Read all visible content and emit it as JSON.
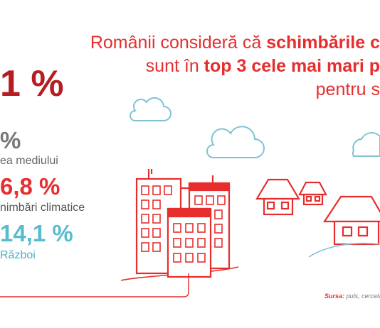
{
  "headline": {
    "line1_prefix": "Românii consideră că ",
    "line1_bold": "schimbările c",
    "line2_prefix": "sunt în ",
    "line2_bold": "top 3 cele mai mari p",
    "line3": "pentru s"
  },
  "big_stat": {
    "value": "1 %"
  },
  "stats": [
    {
      "value": "%",
      "label": "ea mediului"
    },
    {
      "value": "6,8 %",
      "label": "nimbări climatice"
    },
    {
      "value": "14,1 %",
      "label": "Război"
    }
  ],
  "source": {
    "label": "Sursa:",
    "text": " puls, cercetă"
  },
  "colors": {
    "brand_red": "#e62e2e",
    "dark_red": "#b51d22",
    "teal": "#59bccd",
    "gray": "#777777",
    "cloud": "#7fc3d3"
  },
  "icons": [
    "cloud-icon",
    "buildings-icon",
    "house-icon"
  ]
}
